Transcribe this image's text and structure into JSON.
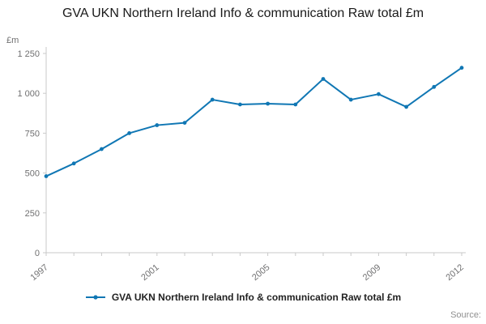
{
  "title": "GVA UKN Northern Ireland Info & communication Raw total £m",
  "y_axis_unit": "£m",
  "legend": {
    "label": "GVA UKN Northern Ireland Info & communication Raw total £m"
  },
  "source_label": "Source:",
  "colors": {
    "line": "#1077b4",
    "axis": "#c9c9c9",
    "tick_text": "#707071"
  },
  "chart_data": {
    "type": "line",
    "title": "GVA UKN Northern Ireland Info & communication Raw total £m",
    "xlabel": "",
    "ylabel": "£m",
    "x": [
      1997,
      1998,
      1999,
      2000,
      2001,
      2002,
      2003,
      2004,
      2005,
      2006,
      2007,
      2008,
      2009,
      2010,
      2011,
      2012
    ],
    "values": [
      480,
      560,
      650,
      750,
      800,
      815,
      960,
      930,
      935,
      930,
      1090,
      960,
      995,
      915,
      1040,
      1160
    ],
    "ylim": [
      0,
      1250
    ],
    "yticks": [
      0,
      250,
      500,
      750,
      1000,
      1250
    ],
    "ytick_labels": [
      "0",
      "250",
      "500",
      "750",
      "1 000",
      "1 250"
    ],
    "xticks_shown": [
      1997,
      2001,
      2005,
      2009,
      2012
    ],
    "grid": false,
    "legend_position": "bottom",
    "series": [
      {
        "name": "GVA UKN Northern Ireland Info & communication Raw total £m",
        "values": [
          480,
          560,
          650,
          750,
          800,
          815,
          960,
          930,
          935,
          930,
          1090,
          960,
          995,
          915,
          1040,
          1160
        ]
      }
    ]
  }
}
